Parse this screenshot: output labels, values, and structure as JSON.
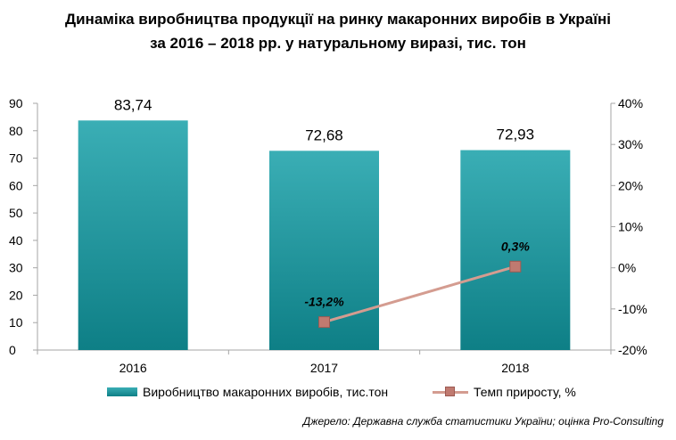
{
  "title_line1": "Динаміка виробництва продукції на ринку макаронних виробів в Україні",
  "title_line2": "за 2016 – 2018 рр. у натуральному виразі, тис. тон",
  "source": "Джерело: Державна служба статистики України; оцінка Pro-Consulting",
  "colors": {
    "bar_top": "#3aaeb5",
    "bar_bottom": "#0e7f86",
    "line": "#d49c90",
    "marker": "#c07a70"
  },
  "chart_data": {
    "type": "bar",
    "categories": [
      "2016",
      "2017",
      "2018"
    ],
    "series": [
      {
        "name": "Виробництво  макаронних  виробів,  тис.тон",
        "type": "bar",
        "axis": "left",
        "values": [
          83.74,
          72.68,
          72.93
        ],
        "labels": [
          "83,74",
          "72,68",
          "72,93"
        ]
      },
      {
        "name": "Темп  приросту,  %",
        "type": "line",
        "axis": "right",
        "values": [
          null,
          -13.2,
          0.3
        ],
        "labels": [
          "",
          "-13,2%",
          "0,3%"
        ]
      }
    ],
    "ylim": [
      0,
      90
    ],
    "yticks": [
      0,
      10,
      20,
      30,
      40,
      50,
      60,
      70,
      80,
      90
    ],
    "ytick_labels": [
      "0",
      "10",
      "20",
      "30",
      "40",
      "50",
      "60",
      "70",
      "80",
      "90"
    ],
    "y2lim": [
      -20,
      40
    ],
    "y2ticks": [
      -20,
      -10,
      0,
      10,
      20,
      30,
      40
    ],
    "y2tick_labels": [
      "-20%",
      "-10%",
      "0%",
      "10%",
      "20%",
      "30%",
      "40%"
    ],
    "legend_position": "bottom",
    "grid": false
  }
}
